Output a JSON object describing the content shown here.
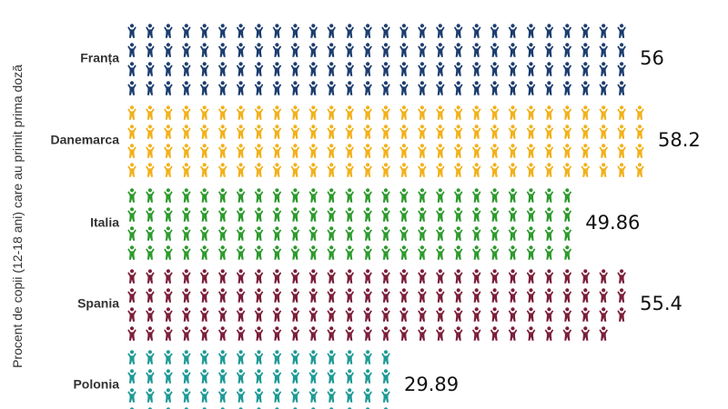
{
  "chart_data": {
    "type": "bar",
    "subtype": "pictograph",
    "icon": "person-arms-raised-icon",
    "ylabel": "Procent de copii (12-18 ani) care au primit prima doză",
    "series": [
      {
        "name": "Franța",
        "value": 56,
        "value_label": "56",
        "color": "#1c3d6e"
      },
      {
        "name": "Danemarca",
        "value": 58.2,
        "value_label": "58.2",
        "color": "#f2b11b"
      },
      {
        "name": "Italia",
        "value": 49.86,
        "value_label": "49.86",
        "color": "#2e9a2e"
      },
      {
        "name": "Spania",
        "value": 55.4,
        "value_label": "55.4",
        "color": "#7b1f3a"
      },
      {
        "name": "Polonia",
        "value": 29.89,
        "value_label": "29.89",
        "color": "#1f9a96"
      }
    ]
  }
}
